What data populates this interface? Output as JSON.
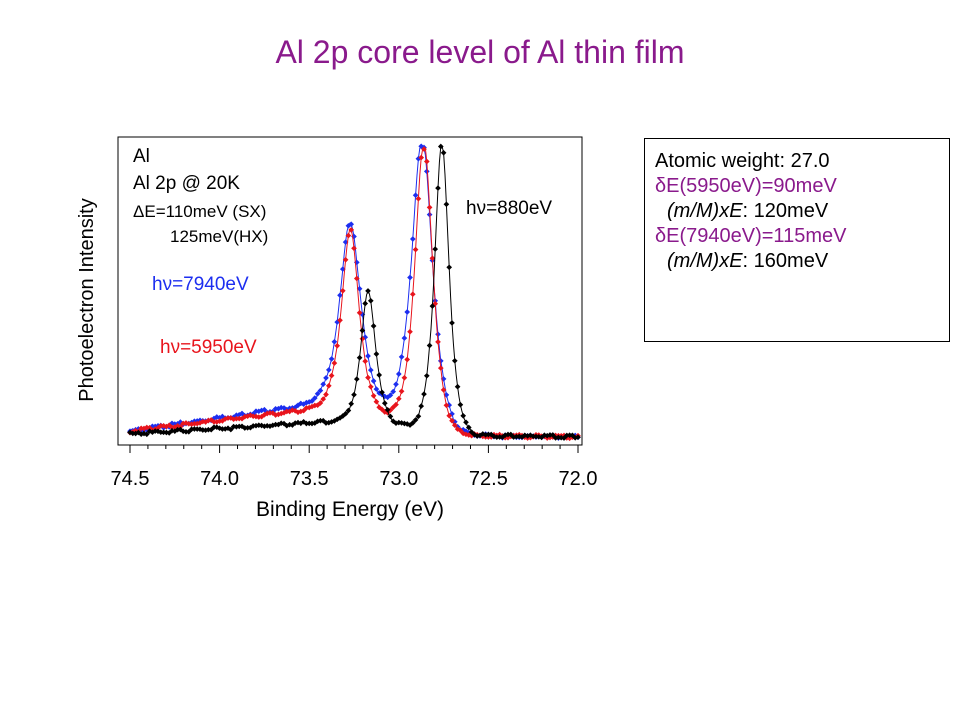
{
  "title": "Al 2p core level of Al thin film",
  "info_box": {
    "atomic_weight": "Atomic weight: 27.0",
    "delta_e_5950": "δE(5950eV)=90meV",
    "mass_ratio_term": "(m/M)xE",
    "recoil_5950": ": 120meV",
    "delta_e_7940": "δE(7940eV)=115meV",
    "recoil_7940": ": 160meV"
  },
  "colors": {
    "title": "#8a1a8c",
    "blue": "#1c2ef0",
    "red": "#e8141c",
    "black": "#000000"
  },
  "chart_data": {
    "type": "line",
    "xlabel": "Binding Energy (eV)",
    "ylabel": "Photoelectron Intensity",
    "xlim": [
      74.5,
      72.0
    ],
    "x_reversed": true,
    "x_ticks": [
      "74.5",
      "74.0",
      "73.5",
      "73.0",
      "72.5",
      "72.0"
    ],
    "y_ticks": false,
    "grid": false,
    "annotations": {
      "sample": "Al",
      "core_level": "Al 2p @ 20K",
      "resolution_sx": "ΔE=110meV (SX)",
      "resolution_hx": "125meV(HX)"
    },
    "series": [
      {
        "name": "hν=7940eV",
        "color": "#1c2ef0",
        "peaks": [
          {
            "x": 73.27,
            "height": 0.62,
            "width": 0.1
          },
          {
            "x": 72.87,
            "height": 1.0,
            "width": 0.1
          }
        ],
        "background": [
          {
            "x": 74.5,
            "level": 0.02
          },
          {
            "x": 73.3,
            "level": 0.13
          },
          {
            "x": 72.7,
            "level": 0.005
          },
          {
            "x": 72.0,
            "level": 0.0
          }
        ]
      },
      {
        "name": "hν=5950eV",
        "color": "#e8141c",
        "peaks": [
          {
            "x": 73.27,
            "height": 0.61,
            "width": 0.085
          },
          {
            "x": 72.86,
            "height": 0.99,
            "width": 0.085
          }
        ],
        "background": [
          {
            "x": 74.5,
            "level": 0.02
          },
          {
            "x": 73.3,
            "level": 0.11
          },
          {
            "x": 72.7,
            "level": 0.005
          },
          {
            "x": 72.0,
            "level": 0.0
          }
        ]
      },
      {
        "name": "hν=880eV",
        "color": "#000000",
        "peaks": [
          {
            "x": 73.17,
            "height": 0.45,
            "width": 0.07
          },
          {
            "x": 72.76,
            "height": 1.0,
            "width": 0.07
          }
        ],
        "background": [
          {
            "x": 74.5,
            "level": 0.01
          },
          {
            "x": 73.2,
            "level": 0.06
          },
          {
            "x": 72.6,
            "level": 0.005
          },
          {
            "x": 72.0,
            "level": 0.0
          }
        ]
      }
    ]
  }
}
